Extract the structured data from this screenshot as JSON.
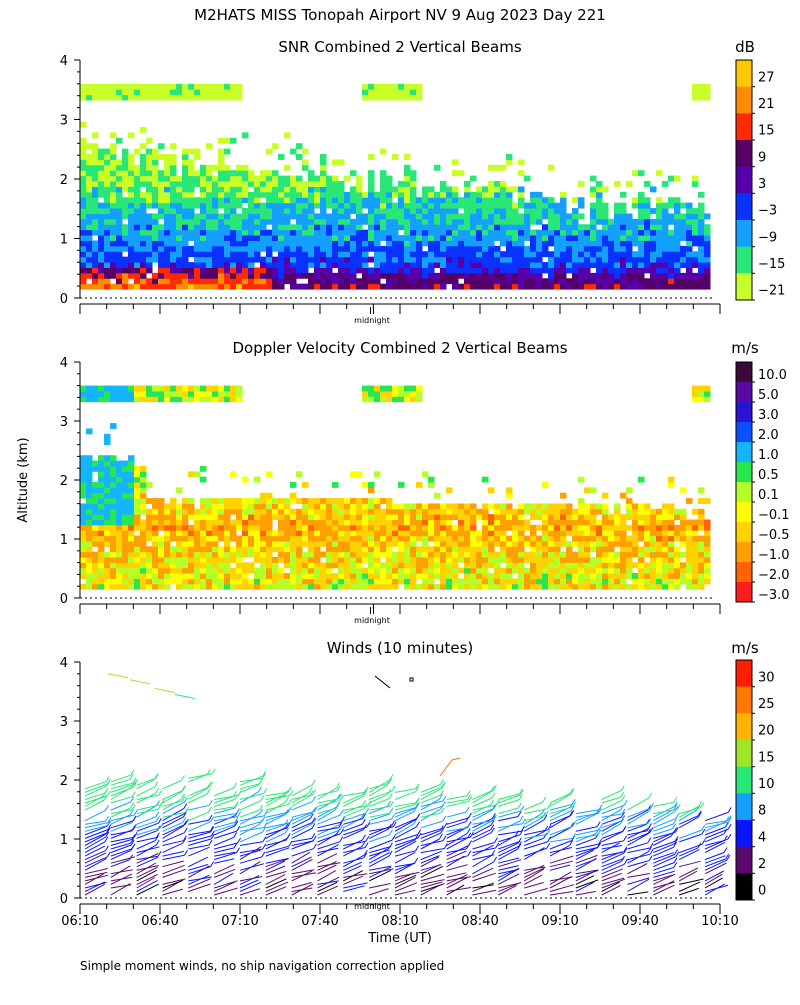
{
  "header": {
    "title": "M2HATS MISS Tonopah Airport NV   9 Aug 2023 Day 221"
  },
  "axes": {
    "ylabel": "Altitude (km)",
    "xlabel": "Time (UT)",
    "yticks": [
      "0",
      "1",
      "2",
      "3",
      "4"
    ],
    "xticks": [
      "06:10",
      "06:40",
      "07:10",
      "07:40",
      "08:10",
      "08:40",
      "09:10",
      "09:40",
      "10:10"
    ],
    "midnight_label": "midnight",
    "midnight_mark": "II"
  },
  "footer": {
    "note": "Simple moment winds, no ship navigation correction applied"
  },
  "chart_data": [
    {
      "type": "heatmap",
      "title": "SNR Combined 2 Vertical Beams",
      "ylabel": "Altitude (km)",
      "ylim": [
        0,
        4
      ],
      "colorbar": {
        "unit": "dB",
        "labels": [
          "27",
          "21",
          "15",
          "9",
          "3",
          "−3",
          "−9",
          "−15",
          "−21"
        ],
        "colors": [
          "#ffc800",
          "#ff8c00",
          "#ff2a00",
          "#550066",
          "#5500aa",
          "#0a32ff",
          "#14a0ff",
          "#28e678",
          "#c8ff28"
        ]
      },
      "profile": [
        {
          "alt": 0.2,
          "value": 12
        },
        {
          "alt": 0.5,
          "value": 0
        },
        {
          "alt": 1.0,
          "value": -6
        },
        {
          "alt": 1.5,
          "value": -10
        },
        {
          "alt": 2.0,
          "value": -16
        },
        {
          "alt": 3.5,
          "value": -19
        }
      ]
    },
    {
      "type": "heatmap",
      "title": "Doppler Velocity Combined 2 Vertical Beams",
      "ylabel": "Altitude (km)",
      "ylim": [
        0,
        4
      ],
      "colorbar": {
        "unit": "m/s",
        "labels": [
          "10.0",
          "5.0",
          "3.0",
          "2.0",
          "1.0",
          "0.5",
          "0.1",
          "−0.1",
          "−0.5",
          "−1.0",
          "−2.0",
          "−3.0"
        ],
        "colors": [
          "#3a0a3a",
          "#5a0aa0",
          "#2814d2",
          "#0a50ff",
          "#14b4ff",
          "#28e650",
          "#b4ff28",
          "#ffff00",
          "#ffd200",
          "#ffa000",
          "#ff6400",
          "#ff1e1e"
        ]
      },
      "profile": [
        {
          "alt": 0.3,
          "value": 0.0
        },
        {
          "alt": 0.8,
          "value": -0.3
        },
        {
          "alt": 1.2,
          "value": -0.6
        },
        {
          "alt": 2.0,
          "value": 0.3
        },
        {
          "alt": 3.5,
          "value": 0.2
        }
      ]
    },
    {
      "type": "scatter",
      "title": "Winds (10 minutes)",
      "ylabel": "Altitude (km)",
      "ylim": [
        0,
        4
      ],
      "xlim": [
        "06:10",
        "10:10"
      ],
      "colorbar": {
        "unit": "m/s",
        "labels": [
          "30",
          "25",
          "20",
          "15",
          "10",
          "8",
          "4",
          "2",
          "0"
        ],
        "colors": [
          "#ff1e00",
          "#ff7800",
          "#ffb400",
          "#a0e628",
          "#28e678",
          "#14a0ff",
          "#0a14ff",
          "#5a0a6e",
          "#000000"
        ]
      },
      "profile": [
        {
          "alt": 0.3,
          "speed": 3
        },
        {
          "alt": 0.8,
          "speed": 6
        },
        {
          "alt": 1.3,
          "speed": 9
        },
        {
          "alt": 1.8,
          "speed": 13
        },
        {
          "alt": 2.4,
          "speed": 8
        },
        {
          "alt": 3.7,
          "speed": 12
        }
      ]
    }
  ]
}
